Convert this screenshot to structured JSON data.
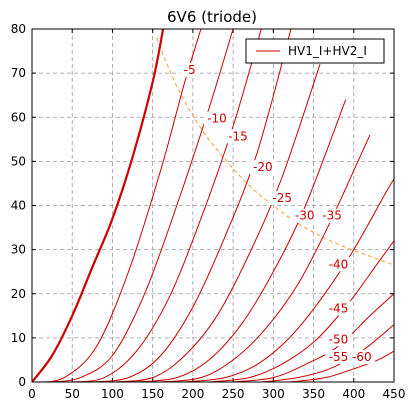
{
  "chart_data": {
    "type": "line",
    "title": "6V6  (triode)",
    "xlabel": "",
    "ylabel": "",
    "xlim": [
      0,
      450
    ],
    "ylim": [
      0,
      80
    ],
    "xticks": [
      0,
      50,
      100,
      150,
      200,
      250,
      300,
      350,
      400,
      450
    ],
    "yticks": [
      0,
      10,
      20,
      30,
      40,
      50,
      60,
      70,
      80
    ],
    "grid": true,
    "legend": {
      "position": "top-right",
      "entries": [
        "HV1_I+HV2_I"
      ]
    },
    "colors": {
      "curves": "#cc0000",
      "dissipation": "#f0a040",
      "grid": "#9a9a9a"
    },
    "dissipation_curve": {
      "style": "dashed",
      "x": [
        155,
        180,
        210,
        240,
        270,
        300,
        330,
        360,
        390,
        420,
        450
      ],
      "y": [
        78,
        67,
        57.5,
        50.5,
        44.5,
        40,
        36,
        33,
        30.5,
        28.5,
        26.5
      ]
    },
    "series": [
      {
        "grid_voltage": 0,
        "label": "",
        "bold": true,
        "x": [
          0,
          25,
          50,
          75,
          100,
          125,
          150,
          163
        ],
        "y": [
          0,
          6,
          15,
          26,
          37,
          51,
          68,
          80
        ]
      },
      {
        "grid_voltage": -5,
        "label": "-5",
        "label_pos": [
          196,
          70
        ],
        "x": [
          5,
          40,
          80,
          120,
          160,
          190,
          210
        ],
        "y": [
          0,
          1,
          8,
          25,
          48,
          68,
          80
        ]
      },
      {
        "grid_voltage": -10,
        "label": "-10",
        "label_pos": [
          230,
          59
        ],
        "x": [
          25,
          60,
          100,
          140,
          180,
          220,
          250
        ],
        "y": [
          0,
          1,
          6,
          20,
          40,
          62,
          80
        ]
      },
      {
        "grid_voltage": -15,
        "label": "-15",
        "label_pos": [
          256,
          55
        ],
        "x": [
          50,
          90,
          130,
          170,
          210,
          250,
          285
        ],
        "y": [
          0,
          1,
          7,
          19,
          37,
          58,
          80
        ]
      },
      {
        "grid_voltage": -20,
        "label": "-20",
        "label_pos": [
          287,
          48
        ],
        "x": [
          75,
          120,
          160,
          200,
          240,
          280,
          322
        ],
        "y": [
          0,
          1,
          6,
          17,
          33,
          52,
          80
        ]
      },
      {
        "grid_voltage": -25,
        "label": "-25",
        "label_pos": [
          311,
          41
        ],
        "x": [
          100,
          150,
          190,
          230,
          270,
          310,
          358
        ],
        "y": [
          0,
          1,
          6,
          15,
          29,
          46,
          72
        ]
      },
      {
        "grid_voltage": -30,
        "label": "-30",
        "label_pos": [
          339,
          37
        ],
        "x": [
          130,
          180,
          220,
          260,
          300,
          340,
          390
        ],
        "y": [
          0,
          1,
          5,
          13,
          25,
          40,
          64
        ]
      },
      {
        "grid_voltage": -35,
        "label": "-35",
        "label_pos": [
          373,
          37
        ],
        "x": [
          160,
          210,
          250,
          290,
          330,
          370,
          420
        ],
        "y": [
          0,
          1,
          5,
          12,
          22,
          36,
          56
        ]
      },
      {
        "grid_voltage": -40,
        "label": "-40",
        "label_pos": [
          381,
          26
        ],
        "x": [
          190,
          240,
          280,
          320,
          360,
          400,
          440,
          450
        ],
        "y": [
          0,
          1,
          4,
          10,
          19,
          30,
          43,
          46
        ]
      },
      {
        "grid_voltage": -45,
        "label": "-45",
        "label_pos": [
          381,
          16
        ],
        "x": [
          220,
          270,
          310,
          350,
          390,
          430,
          450
        ],
        "y": [
          0,
          1,
          4,
          9,
          17,
          27,
          32
        ]
      },
      {
        "grid_voltage": -50,
        "label": "-50",
        "label_pos": [
          381,
          9
        ],
        "x": [
          250,
          300,
          340,
          380,
          420,
          450
        ],
        "y": [
          0,
          1,
          4,
          8,
          15,
          20
        ]
      },
      {
        "grid_voltage": -55,
        "label": "-55",
        "label_pos": [
          381,
          5
        ],
        "x": [
          285,
          330,
          370,
          410,
          450
        ],
        "y": [
          0,
          1,
          3,
          7,
          13
        ]
      },
      {
        "grid_voltage": -60,
        "label": "-60",
        "label_pos": [
          410,
          5
        ],
        "x": [
          320,
          365,
          400,
          430,
          450
        ],
        "y": [
          0,
          1,
          3,
          5,
          7
        ]
      }
    ]
  }
}
